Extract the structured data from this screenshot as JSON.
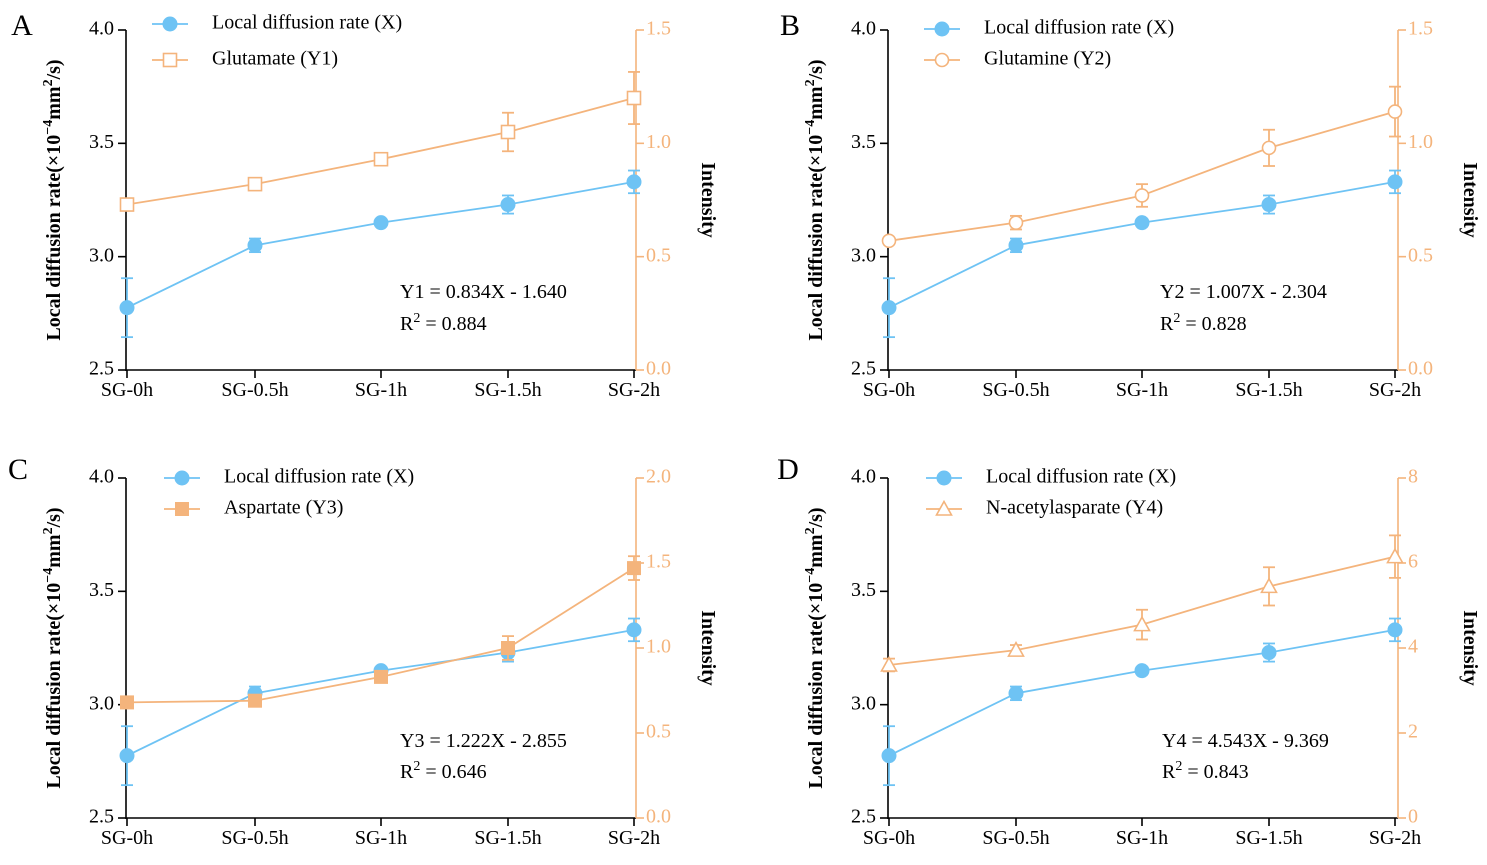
{
  "colors": {
    "x_series": "#6EC3F4",
    "y_series": "#F4B47C",
    "axis": "#000000"
  },
  "chart_data": [
    {
      "panel": "A",
      "type": "line",
      "categories": [
        "SG-0h",
        "SG-0.5h",
        "SG-1h",
        "SG-1.5h",
        "SG-2h"
      ],
      "ylabel": "Local  diffusion rate(×10⁻⁴mm²/s)",
      "ylabel_parts": {
        "main": "Local  diffusion rate(×10",
        "exp": "−4",
        "mid": "mm",
        "exp2": "2",
        "tail": "/s)"
      },
      "y2label": "Intensity",
      "ylim": [
        2.5,
        4.0
      ],
      "yticks": [
        "2.5",
        "3.0",
        "3.5",
        "4.0"
      ],
      "y2lim": [
        0,
        1.5
      ],
      "y2ticks": [
        "0.0",
        "0.5",
        "1.0",
        "1.5"
      ],
      "series": [
        {
          "name": "Local  diffusion rate (X)",
          "axis": "left",
          "marker": "circle-filled",
          "values": [
            2.775,
            3.05,
            3.15,
            3.23,
            3.33
          ],
          "err": [
            0.13,
            0.03,
            0,
            0.04,
            0.05
          ]
        },
        {
          "name": "Glutamate (Y1)",
          "axis": "right",
          "marker": "square-open",
          "values": [
            0.73,
            0.82,
            0.93,
            1.05,
            1.2
          ],
          "err": [
            0,
            0,
            0,
            0.085,
            0.115
          ]
        }
      ],
      "equation": "Y1 = 0.834X - 1.640",
      "r2_label": "R",
      "r2_exp": "2",
      "r2_value": " = 0.884"
    },
    {
      "panel": "B",
      "type": "line",
      "categories": [
        "SG-0h",
        "SG-0.5h",
        "SG-1h",
        "SG-1.5h",
        "SG-2h"
      ],
      "ylabel": "Local  diffusion rate(×10⁻⁴mm²/s)",
      "ylabel_parts": {
        "main": "Local  diffusion rate(×10",
        "exp": "−4",
        "mid": "mm",
        "exp2": "2",
        "tail": "/s)"
      },
      "y2label": "Intensity",
      "ylim": [
        2.5,
        4.0
      ],
      "yticks": [
        "2.5",
        "3.0",
        "3.5",
        "4.0"
      ],
      "y2lim": [
        0,
        1.5
      ],
      "y2ticks": [
        "0.0",
        "0.5",
        "1.0",
        "1.5"
      ],
      "series": [
        {
          "name": "Local  diffusion rate (X)",
          "axis": "left",
          "marker": "circle-filled",
          "values": [
            2.775,
            3.05,
            3.15,
            3.23,
            3.33
          ],
          "err": [
            0.13,
            0.03,
            0,
            0.04,
            0.05
          ]
        },
        {
          "name": "Glutamine (Y2)",
          "axis": "right",
          "marker": "circle-open",
          "values": [
            0.57,
            0.65,
            0.77,
            0.98,
            1.14
          ],
          "err": [
            0,
            0.03,
            0.05,
            0.08,
            0.11
          ]
        }
      ],
      "equation": "Y2 = 1.007X - 2.304",
      "r2_label": "R",
      "r2_exp": "2",
      "r2_value": " = 0.828"
    },
    {
      "panel": "C",
      "type": "line",
      "categories": [
        "SG-0h",
        "SG-0.5h",
        "SG-1h",
        "SG-1.5h",
        "SG-2h"
      ],
      "ylabel": "Local  diffusion rate(×10⁻⁴mm²/s)",
      "ylabel_parts": {
        "main": "Local  diffusion rate(×10",
        "exp": "−4",
        "mid": "mm",
        "exp2": "2",
        "tail": "/s)"
      },
      "y2label": "Intensity",
      "ylim": [
        2.5,
        4.0
      ],
      "yticks": [
        "2.5",
        "3.0",
        "3.5",
        "4.0"
      ],
      "y2lim": [
        0,
        2.0
      ],
      "y2ticks": [
        "0.0",
        "0.5",
        "1.0",
        "1.5",
        "2.0"
      ],
      "series": [
        {
          "name": "Local  diffusion rate (X)",
          "axis": "left",
          "marker": "circle-filled",
          "values": [
            2.775,
            3.05,
            3.15,
            3.23,
            3.33
          ],
          "err": [
            0.13,
            0.03,
            0,
            0.04,
            0.05
          ]
        },
        {
          "name": "Aspartate (Y3)",
          "axis": "right",
          "marker": "square-filled",
          "values": [
            0.68,
            0.69,
            0.83,
            1.0,
            1.47
          ],
          "err": [
            0,
            0,
            0,
            0.07,
            0.07
          ]
        }
      ],
      "equation": "Y3 = 1.222X - 2.855",
      "r2_label": "R",
      "r2_exp": "2",
      "r2_value": " = 0.646"
    },
    {
      "panel": "D",
      "type": "line",
      "categories": [
        "SG-0h",
        "SG-0.5h",
        "SG-1h",
        "SG-1.5h",
        "SG-2h"
      ],
      "ylabel": "Local  diffusion rate(×10⁻⁴mm²/s)",
      "ylabel_parts": {
        "main": "Local  diffusion rate(×10",
        "exp": "−4",
        "mid": "mm",
        "exp2": "2",
        "tail": "/s)"
      },
      "y2label": "Intensity",
      "ylim": [
        2.5,
        4.0
      ],
      "yticks": [
        "2.5",
        "3.0",
        "3.5",
        "4.0"
      ],
      "y2lim": [
        0,
        8
      ],
      "y2ticks": [
        "0",
        "2",
        "4",
        "6",
        "8"
      ],
      "series": [
        {
          "name": "Local  diffusion rate (X)",
          "axis": "left",
          "marker": "circle-filled",
          "values": [
            2.775,
            3.05,
            3.15,
            3.23,
            3.33
          ],
          "err": [
            0.13,
            0.03,
            0,
            0.04,
            0.05
          ]
        },
        {
          "name": "N-acetylasparate (Y4)",
          "axis": "right",
          "marker": "triangle-open",
          "values": [
            3.6,
            3.95,
            4.55,
            5.45,
            6.15
          ],
          "err": [
            0.15,
            0.12,
            0.35,
            0.45,
            0.5
          ]
        }
      ],
      "equation": "Y4 = 4.543X - 9.369",
      "r2_label": "R",
      "r2_exp": "2",
      "r2_value": " = 0.843"
    }
  ]
}
